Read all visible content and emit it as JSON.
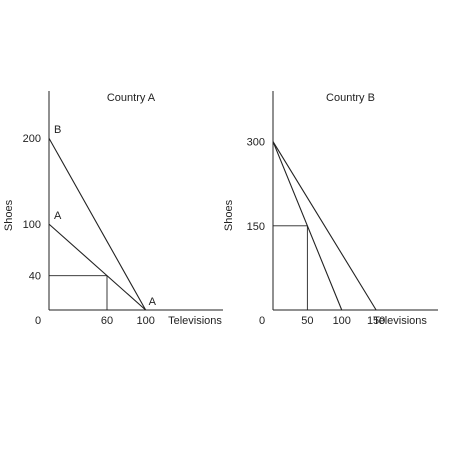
{
  "chart_data": [
    {
      "type": "line",
      "title": "Country A",
      "xlabel": "Televisions",
      "ylabel": "Shoes",
      "xlim": [
        0,
        180
      ],
      "ylim": [
        0,
        255
      ],
      "x_ticks": [
        {
          "value": 0,
          "label": "0"
        },
        {
          "value": 60,
          "label": "60"
        },
        {
          "value": 100,
          "label": "100"
        }
      ],
      "y_ticks": [
        {
          "value": 40,
          "label": "40"
        },
        {
          "value": 100,
          "label": "100"
        },
        {
          "value": 200,
          "label": "200"
        }
      ],
      "series": [
        {
          "label": "B",
          "points": [
            [
              0,
              200
            ],
            [
              100,
              0
            ]
          ]
        },
        {
          "label": "A",
          "points": [
            [
              0,
              100
            ],
            [
              100,
              0
            ]
          ]
        }
      ],
      "end_label": {
        "text": "A",
        "x": 100,
        "y": 0
      },
      "reference_point": {
        "x": 60,
        "y": 40
      }
    },
    {
      "type": "line",
      "title": "Country B",
      "xlabel": "Televisions",
      "ylabel": "Shoes",
      "xlim": [
        0,
        240
      ],
      "ylim": [
        0,
        390
      ],
      "x_ticks": [
        {
          "value": 0,
          "label": "0"
        },
        {
          "value": 50,
          "label": "50"
        },
        {
          "value": 100,
          "label": "100"
        },
        {
          "value": 150,
          "label": "150"
        }
      ],
      "y_ticks": [
        {
          "value": 150,
          "label": "150"
        },
        {
          "value": 300,
          "label": "300"
        }
      ],
      "series": [
        {
          "points": [
            [
              0,
              300
            ],
            [
              100,
              0
            ]
          ]
        },
        {
          "points": [
            [
              0,
              300
            ],
            [
              150,
              0
            ]
          ]
        }
      ],
      "reference_point": {
        "x": 50,
        "y": 150
      }
    }
  ]
}
